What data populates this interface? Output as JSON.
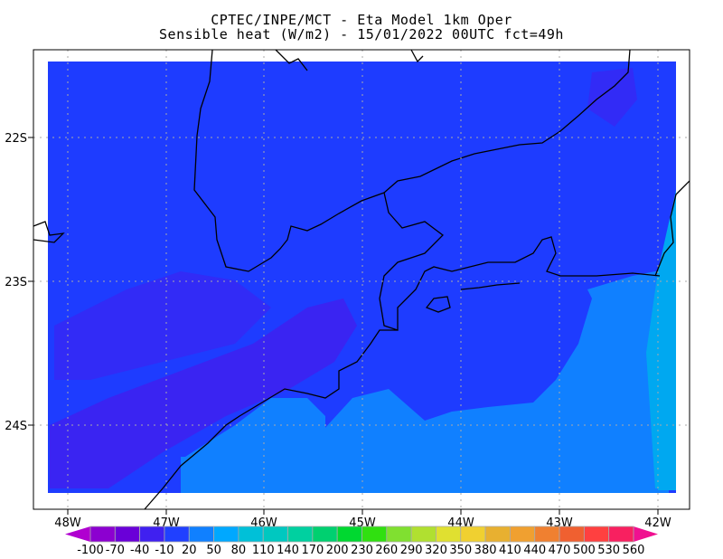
{
  "header": {
    "line1": "CPTEC/INPE/MCT -  Eta Model 1km Oper",
    "line2": "Sensible heat (W/m2) - 15/01/2022 00UTC fct=49h"
  },
  "map": {
    "lon_labels": [
      "48W",
      "47W",
      "46W",
      "45W",
      "44W",
      "43W",
      "42W"
    ],
    "lat_labels": [
      "22S",
      "23S",
      "24S"
    ],
    "lon_range": [
      -48.35,
      -41.7
    ],
    "lat_range": [
      -21.6,
      -24.6
    ],
    "grid": "dotted",
    "field_colors": {
      "land": "#1e3cff",
      "land_low": "#4020f0",
      "ocean_near": "#1080ff",
      "ocean_far": "#00a8f0"
    }
  },
  "colorbar": {
    "labels": [
      "-100",
      "-70",
      "-40",
      "-10",
      "20",
      "50",
      "80",
      "110",
      "140",
      "170",
      "200",
      "230",
      "260",
      "290",
      "320",
      "350",
      "380",
      "410",
      "440",
      "470",
      "500",
      "530",
      "560"
    ],
    "under_color": "#b000d0",
    "over_color": "#f01090",
    "colors": [
      "#8c00d0",
      "#6a00d8",
      "#4020f0",
      "#2040ff",
      "#1080ff",
      "#00a8ff",
      "#00c0d8",
      "#00c8c0",
      "#00d0a0",
      "#00d070",
      "#00d830",
      "#30e010",
      "#80e030",
      "#b0e030",
      "#e0e030",
      "#f0d030",
      "#e8b030",
      "#f0a030",
      "#f08030",
      "#f06030",
      "#ff4040",
      "#f82060"
    ]
  }
}
